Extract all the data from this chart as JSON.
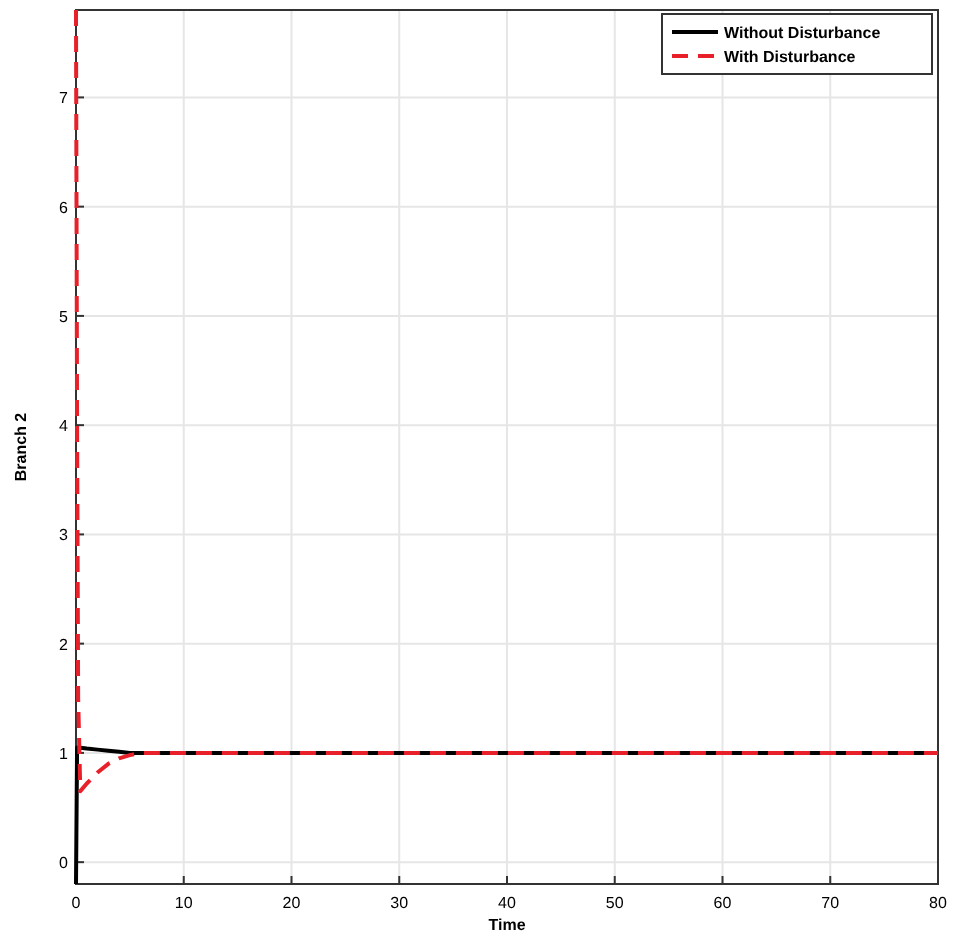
{
  "chart_data": {
    "type": "line",
    "xlabel": "Time",
    "ylabel": "Branch 2",
    "xlim": [
      0,
      80
    ],
    "ylim": [
      -0.2,
      7.8
    ],
    "xticks": [
      0,
      10,
      20,
      30,
      40,
      50,
      60,
      70,
      80
    ],
    "yticks": [
      0,
      1,
      2,
      3,
      4,
      5,
      6,
      7
    ],
    "grid": true,
    "legend": "top right",
    "series": [
      {
        "name": "Without Disturbance",
        "color": "#000000",
        "line_style": "solid",
        "x": [
          0,
          0.1,
          0.2,
          1,
          2,
          3,
          4,
          5,
          6,
          10,
          20,
          40,
          60,
          80
        ],
        "values": [
          -0.2,
          1.05,
          1.05,
          1.04,
          1.03,
          1.02,
          1.01,
          1.0,
          1.0,
          1.0,
          1.0,
          1.0,
          1.0,
          1.0
        ]
      },
      {
        "name": "With Disturbance",
        "color": "#e8202a",
        "line_style": "dashed",
        "x": [
          0,
          0.1,
          0.2,
          0.4,
          1,
          2,
          3,
          4,
          5,
          6,
          8,
          10,
          20,
          40,
          60,
          80
        ],
        "values": [
          7.8,
          4,
          1.5,
          0.65,
          0.72,
          0.82,
          0.9,
          0.95,
          0.98,
          1.0,
          1.0,
          1.0,
          1.0,
          1.0,
          1.0,
          1.0
        ]
      }
    ]
  }
}
